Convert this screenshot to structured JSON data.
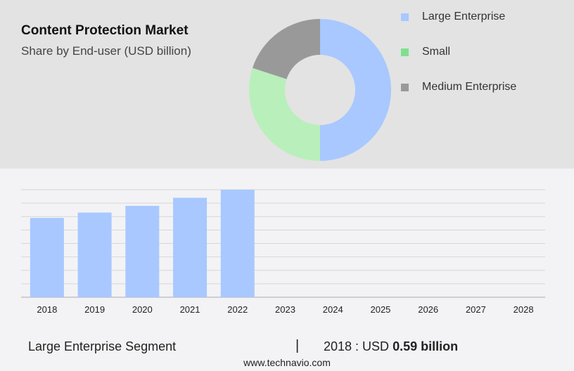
{
  "title": "Content Protection Market",
  "subtitle": "Share by End-user (USD billion)",
  "legend": [
    {
      "label": "Large Enterprise",
      "color": "#a8c8ff"
    },
    {
      "label": "Small",
      "color": "#7ee08e"
    },
    {
      "label": "Medium Enterprise",
      "color": "#999999"
    }
  ],
  "footer": {
    "segment": "Large Enterprise Segment",
    "separator": "|",
    "prefix": "2018 : USD ",
    "value": "0.59 billion"
  },
  "site": "www.technavio.com",
  "chart_data": [
    {
      "type": "pie",
      "donut": true,
      "labels": [
        "Large Enterprise",
        "Small",
        "Medium Enterprise"
      ],
      "values": [
        50,
        30,
        20
      ],
      "colors": [
        "#a8c8ff",
        "#b9efbb",
        "#999999"
      ]
    },
    {
      "type": "bar",
      "categories": [
        "2018",
        "2019",
        "2020",
        "2021",
        "2022",
        "2023",
        "2024",
        "2025",
        "2026",
        "2027",
        "2028"
      ],
      "values": [
        0.59,
        0.63,
        0.68,
        0.74,
        0.8,
        null,
        null,
        null,
        null,
        null,
        null
      ],
      "ylim": [
        0,
        0.8
      ],
      "grid": true,
      "color": "#a8c8ff"
    }
  ]
}
